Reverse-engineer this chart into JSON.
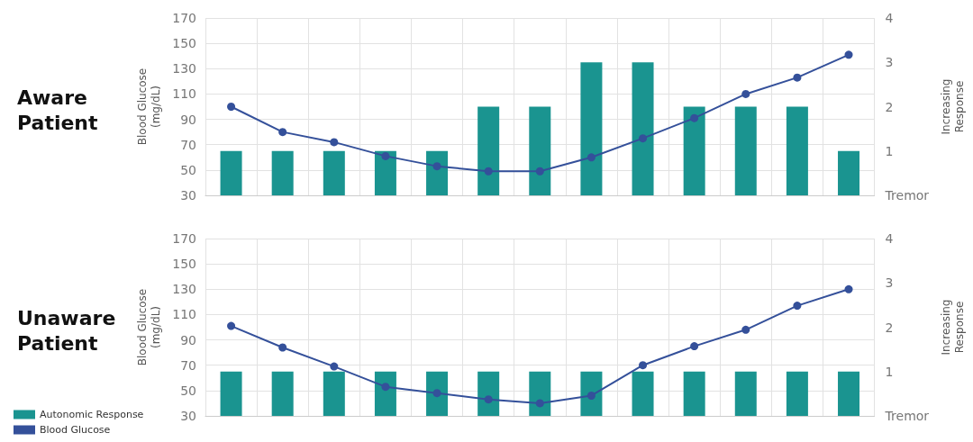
{
  "chart_data": [
    {
      "type": "bar",
      "title": "Aware\nPatient",
      "ylabel": "Blood Glucose\n(mg/dL)",
      "y2label": "Increasing\nResponse",
      "categories": [
        null,
        null,
        null,
        null,
        null,
        null,
        null,
        null,
        null,
        null,
        null,
        null,
        null
      ],
      "series": [
        {
          "axis": "y2",
          "color": "#1a9490",
          "values": [
            1,
            1,
            1,
            1,
            1,
            2,
            2,
            3,
            3,
            2,
            2,
            2,
            1
          ]
        },
        {
          "type": "line",
          "color": "#34509a",
          "values": [
            100,
            80,
            72,
            61,
            53,
            49,
            49,
            60,
            75,
            91,
            110,
            123,
            141
          ]
        }
      ],
      "ylim": [
        30,
        170
      ],
      "yticks": [
        30,
        50,
        70,
        90,
        110,
        130,
        150,
        170
      ],
      "y2lim": [
        0,
        4
      ],
      "y2ticks": [
        {
          "value": 0,
          "label": "Tremor"
        },
        1,
        2,
        3,
        4
      ],
      "grid": true,
      "marker": "circle",
      "legend": false
    },
    {
      "type": "bar",
      "title": "Unaware\nPatient",
      "ylabel": "Blood Glucose\n(mg/dL)",
      "y2label": "Increasing\nResponse",
      "categories": [
        null,
        null,
        null,
        null,
        null,
        null,
        null,
        null,
        null,
        null,
        null,
        null,
        null
      ],
      "series": [
        {
          "axis": "y2",
          "name": "Autonomic Response",
          "color": "#1a9490",
          "values": [
            1,
            1,
            1,
            1,
            1,
            1,
            1,
            1,
            1,
            1,
            1,
            1,
            1
          ]
        },
        {
          "type": "line",
          "name": "Blood Glucose",
          "color": "#34509a",
          "values": [
            101,
            84,
            69,
            53,
            48,
            43,
            40,
            46,
            70,
            85,
            98,
            117,
            130
          ]
        }
      ],
      "ylim": [
        30,
        170
      ],
      "yticks": [
        30,
        50,
        70,
        90,
        110,
        130,
        150,
        170
      ],
      "y2lim": [
        0,
        4
      ],
      "y2ticks": [
        {
          "value": 0,
          "label": "Tremor"
        },
        1,
        2,
        3,
        4
      ],
      "grid": true,
      "marker": "circle",
      "legend": "bottom left"
    }
  ]
}
